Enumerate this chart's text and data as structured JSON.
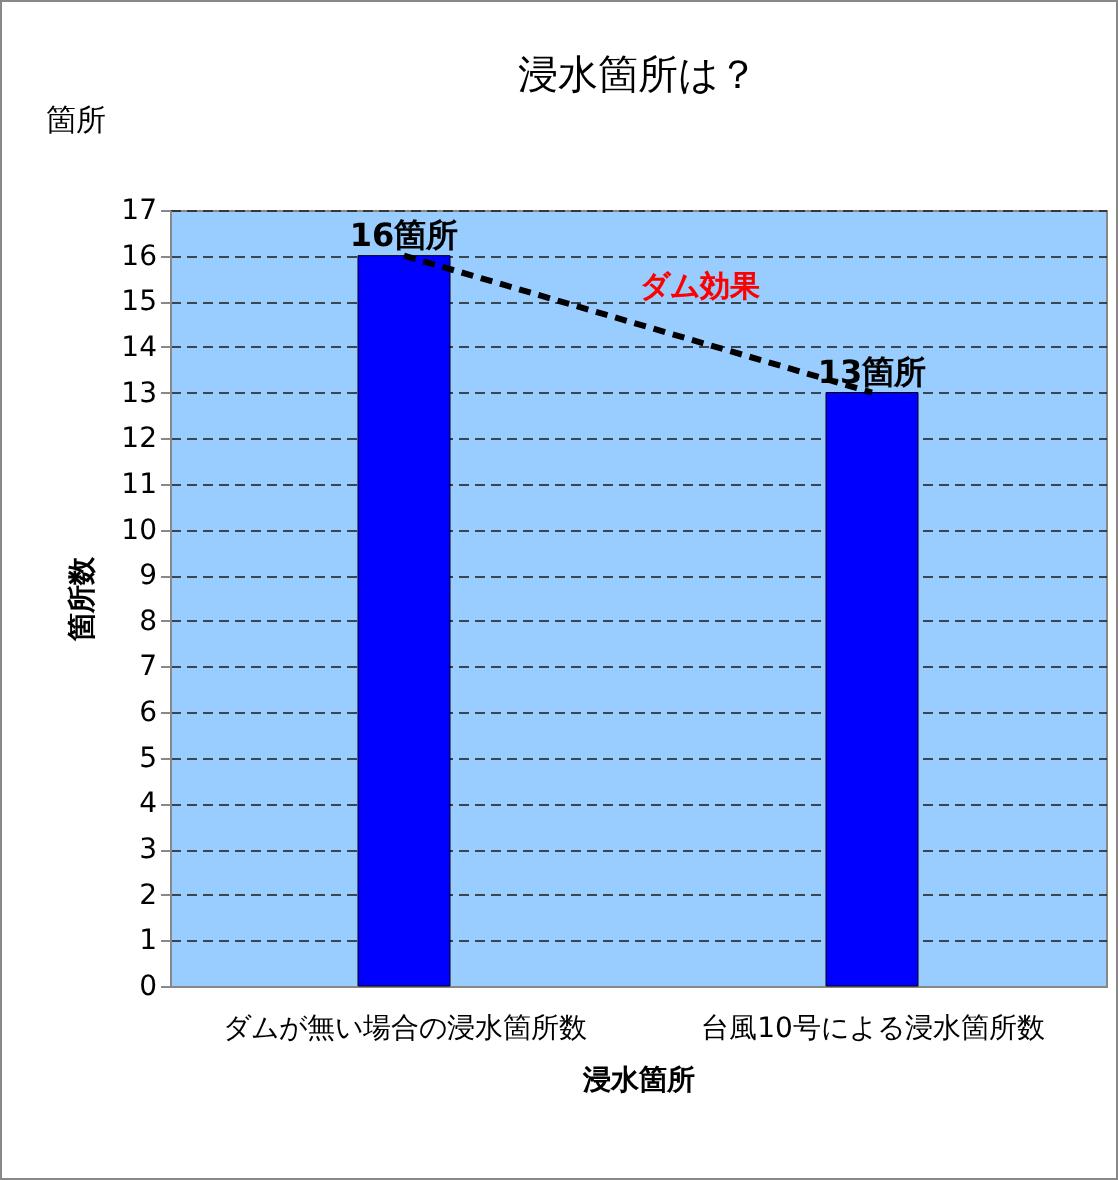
{
  "chart_data": {
    "type": "bar",
    "title": "浸水箇所は？",
    "xlabel": "浸水箇所",
    "ylabel": "箇所数",
    "annotations": [
      "箇所",
      "ダム効果"
    ],
    "categories": [
      "ダムが無い場合の浸水箇所数",
      "台風10号による浸水箇所数"
    ],
    "series": [
      {
        "color": "#0000ff",
        "values": [
          16,
          13
        ],
        "value_labels": [
          "16箇所",
          "13箇所"
        ]
      },
      {
        "type": "line",
        "color": "#000000",
        "values": [
          16,
          13
        ],
        "line_style": "dashed",
        "marker": "none"
      }
    ],
    "ylim": [
      0,
      17
    ],
    "yticks": [
      0,
      1,
      2,
      3,
      4,
      5,
      6,
      7,
      8,
      9,
      10,
      11,
      12,
      13,
      14,
      15,
      16,
      17
    ],
    "grid": "y"
  }
}
